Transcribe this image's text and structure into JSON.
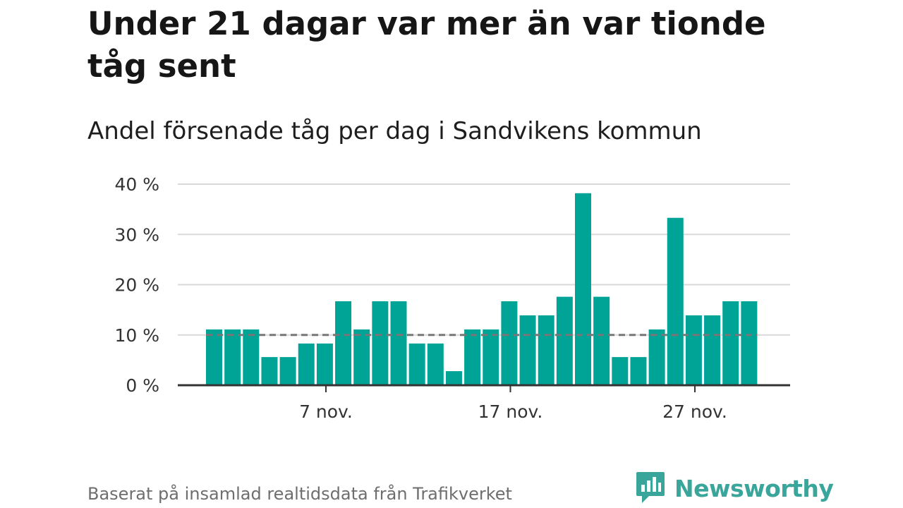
{
  "header": {
    "title": "Under 21 dagar var mer än var tionde tåg sent",
    "subtitle": "Andel försenade tåg per dag i Sandvikens kommun"
  },
  "footer": {
    "source": "Baserat på insamlad realtidsdata från Trafikverket",
    "brand_name": "Newsworthy",
    "brand_icon": "newsworthy-logo-icon"
  },
  "colors": {
    "bar": "#00a497",
    "reference_line": "#777777",
    "grid": "#d9d9d9",
    "axis": "#333333",
    "brand": "#3aa59a"
  },
  "chart_data": {
    "type": "bar",
    "x": [
      "1 nov.",
      "2 nov.",
      "3 nov.",
      "4 nov.",
      "5 nov.",
      "6 nov.",
      "7 nov.",
      "8 nov.",
      "9 nov.",
      "10 nov.",
      "11 nov.",
      "12 nov.",
      "13 nov.",
      "14 nov.",
      "15 nov.",
      "16 nov.",
      "17 nov.",
      "18 nov.",
      "19 nov.",
      "20 nov.",
      "21 nov.",
      "22 nov.",
      "23 nov.",
      "24 nov.",
      "25 nov.",
      "26 nov.",
      "27 nov.",
      "28 nov.",
      "29 nov.",
      "30 nov."
    ],
    "values": [
      11.1,
      11.1,
      11.1,
      5.6,
      5.6,
      8.3,
      8.3,
      16.7,
      11.1,
      16.7,
      16.7,
      8.3,
      8.3,
      2.8,
      11.1,
      11.1,
      16.7,
      13.9,
      13.9,
      17.6,
      38.2,
      17.6,
      5.6,
      5.6,
      11.1,
      33.3,
      13.9,
      13.9,
      16.7,
      16.7
    ],
    "ylim": [
      0,
      40
    ],
    "yticks": [
      0,
      10,
      20,
      30,
      40
    ],
    "ytick_labels": [
      "0 %",
      "10 %",
      "20 %",
      "30 %",
      "40 %"
    ],
    "xticks": [
      {
        "at": "7 nov.",
        "label": "7 nov."
      },
      {
        "at": "17 nov.",
        "label": "17 nov."
      },
      {
        "at": "27 nov.",
        "label": "27 nov."
      }
    ],
    "reference_line": 10,
    "grid": true,
    "xlabel": "",
    "ylabel": ""
  }
}
